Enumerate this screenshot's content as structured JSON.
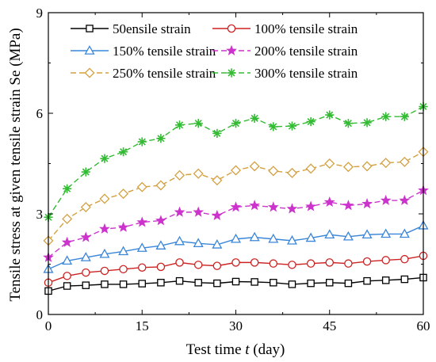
{
  "chart_data": {
    "type": "line",
    "xlabel_parts": [
      "Test time ",
      "t",
      " (day)"
    ],
    "ylabel": "Tensile stress at given tensile strain Se (MPa)",
    "xlim": [
      0,
      60
    ],
    "ylim": [
      0,
      9
    ],
    "xticks": [
      0,
      15,
      30,
      45,
      60
    ],
    "yticks": [
      0,
      3,
      6,
      9
    ],
    "legend_position": "top-left",
    "x": [
      0,
      3,
      6,
      9,
      12,
      15,
      18,
      21,
      24,
      27,
      30,
      33,
      36,
      39,
      42,
      45,
      48,
      51,
      54,
      57,
      60
    ],
    "series": [
      {
        "name": "50ensile strain",
        "color": "#000000",
        "marker": "square",
        "dash": "solid",
        "values": [
          0.7,
          0.85,
          0.87,
          0.9,
          0.9,
          0.92,
          0.95,
          1.0,
          0.95,
          0.93,
          0.98,
          0.97,
          0.95,
          0.9,
          0.93,
          0.95,
          0.93,
          1.0,
          1.02,
          1.05,
          1.1
        ]
      },
      {
        "name": "100% tensile strain",
        "color": "#cc2222",
        "marker": "circle",
        "dash": "solid",
        "values": [
          0.95,
          1.15,
          1.25,
          1.3,
          1.35,
          1.4,
          1.42,
          1.55,
          1.48,
          1.45,
          1.55,
          1.55,
          1.52,
          1.48,
          1.52,
          1.55,
          1.52,
          1.58,
          1.62,
          1.65,
          1.75
        ]
      },
      {
        "name": "150% tensile strain",
        "color": "#3a86d8",
        "marker": "triangle",
        "dash": "solid",
        "values": [
          1.35,
          1.6,
          1.7,
          1.8,
          1.88,
          1.98,
          2.05,
          2.18,
          2.12,
          2.08,
          2.25,
          2.3,
          2.25,
          2.2,
          2.28,
          2.38,
          2.32,
          2.38,
          2.4,
          2.4,
          2.65
        ]
      },
      {
        "name": "200% tensile strain",
        "color": "#cc33cc",
        "marker": "star",
        "dash": "dashed",
        "values": [
          1.7,
          2.15,
          2.3,
          2.55,
          2.6,
          2.75,
          2.8,
          3.05,
          3.05,
          2.95,
          3.2,
          3.25,
          3.2,
          3.15,
          3.22,
          3.35,
          3.25,
          3.3,
          3.4,
          3.4,
          3.7
        ]
      },
      {
        "name": "250% tensile strain",
        "color": "#d4a040",
        "marker": "diamond",
        "dash": "dashed",
        "values": [
          2.2,
          2.85,
          3.2,
          3.45,
          3.6,
          3.8,
          3.85,
          4.15,
          4.2,
          4.0,
          4.3,
          4.42,
          4.28,
          4.22,
          4.35,
          4.5,
          4.4,
          4.42,
          4.52,
          4.55,
          4.85
        ]
      },
      {
        "name": "300% tensile strain",
        "color": "#33bb33",
        "marker": "asterisk",
        "dash": "dashed",
        "values": [
          2.9,
          3.75,
          4.25,
          4.65,
          4.85,
          5.15,
          5.25,
          5.65,
          5.7,
          5.4,
          5.7,
          5.85,
          5.6,
          5.62,
          5.75,
          5.95,
          5.7,
          5.72,
          5.9,
          5.9,
          6.2
        ]
      }
    ]
  }
}
